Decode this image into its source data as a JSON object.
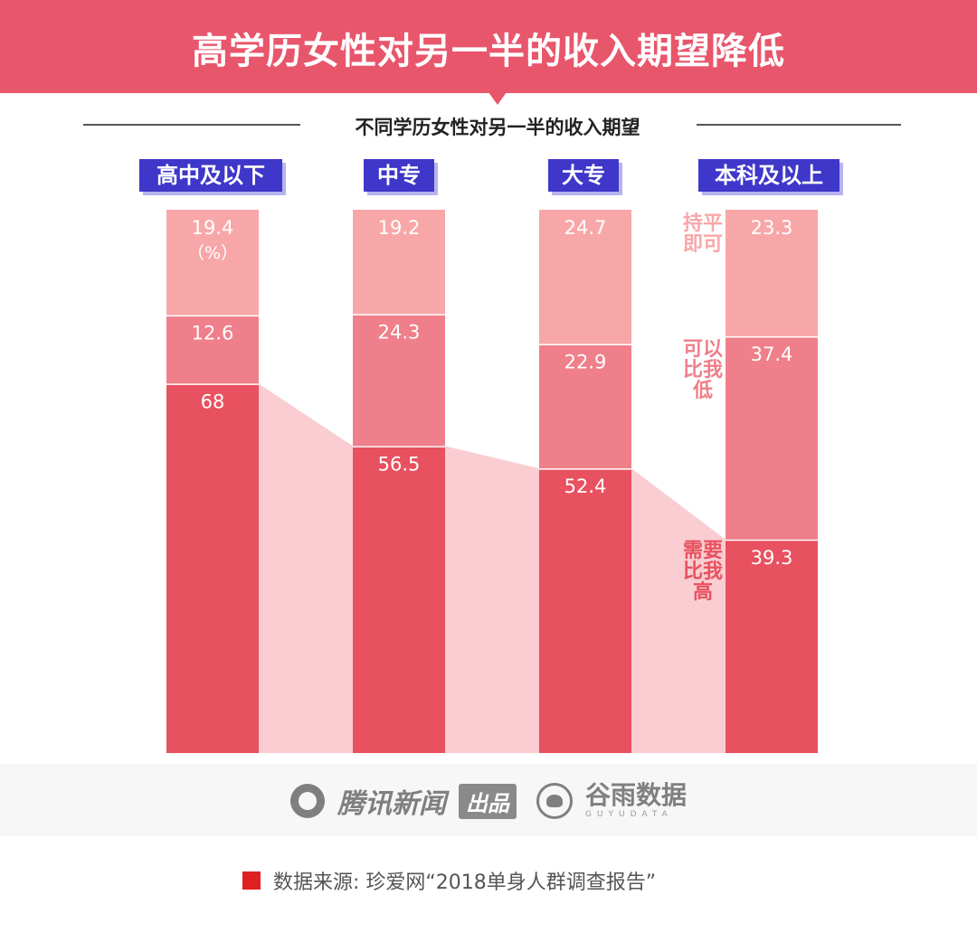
{
  "header": {
    "title": "高学历女性对另一半的收入期望降低",
    "subtitle": "不同学历女性对另一半的收入期望"
  },
  "chart_data": {
    "type": "bar",
    "stacked": true,
    "unit": "（%）",
    "categories": [
      "高中及以下",
      "中专",
      "大专",
      "本科及以上"
    ],
    "series": [
      {
        "name": "需要比我高",
        "values": [
          68,
          56.5,
          52.4,
          39.3
        ],
        "color": "#e8515f"
      },
      {
        "name": "可以比我低",
        "values": [
          12.6,
          24.3,
          22.9,
          37.4
        ],
        "color": "#ef7f8a"
      },
      {
        "name": "持平即可",
        "values": [
          19.4,
          19.2,
          24.7,
          23.3
        ],
        "color": "#f8a7a9"
      }
    ],
    "trend_area_color": "#f9cdd1",
    "ylim": [
      0,
      100
    ],
    "grid": false,
    "legend": "right"
  },
  "footer": {
    "brand1": "腾讯新闻",
    "brand1_badge": "出品",
    "brand2": "谷雨数据",
    "brand2_sub": "GUYUDATA",
    "source": "数据来源: 珍爱网“2018单身人群调查报告”"
  }
}
